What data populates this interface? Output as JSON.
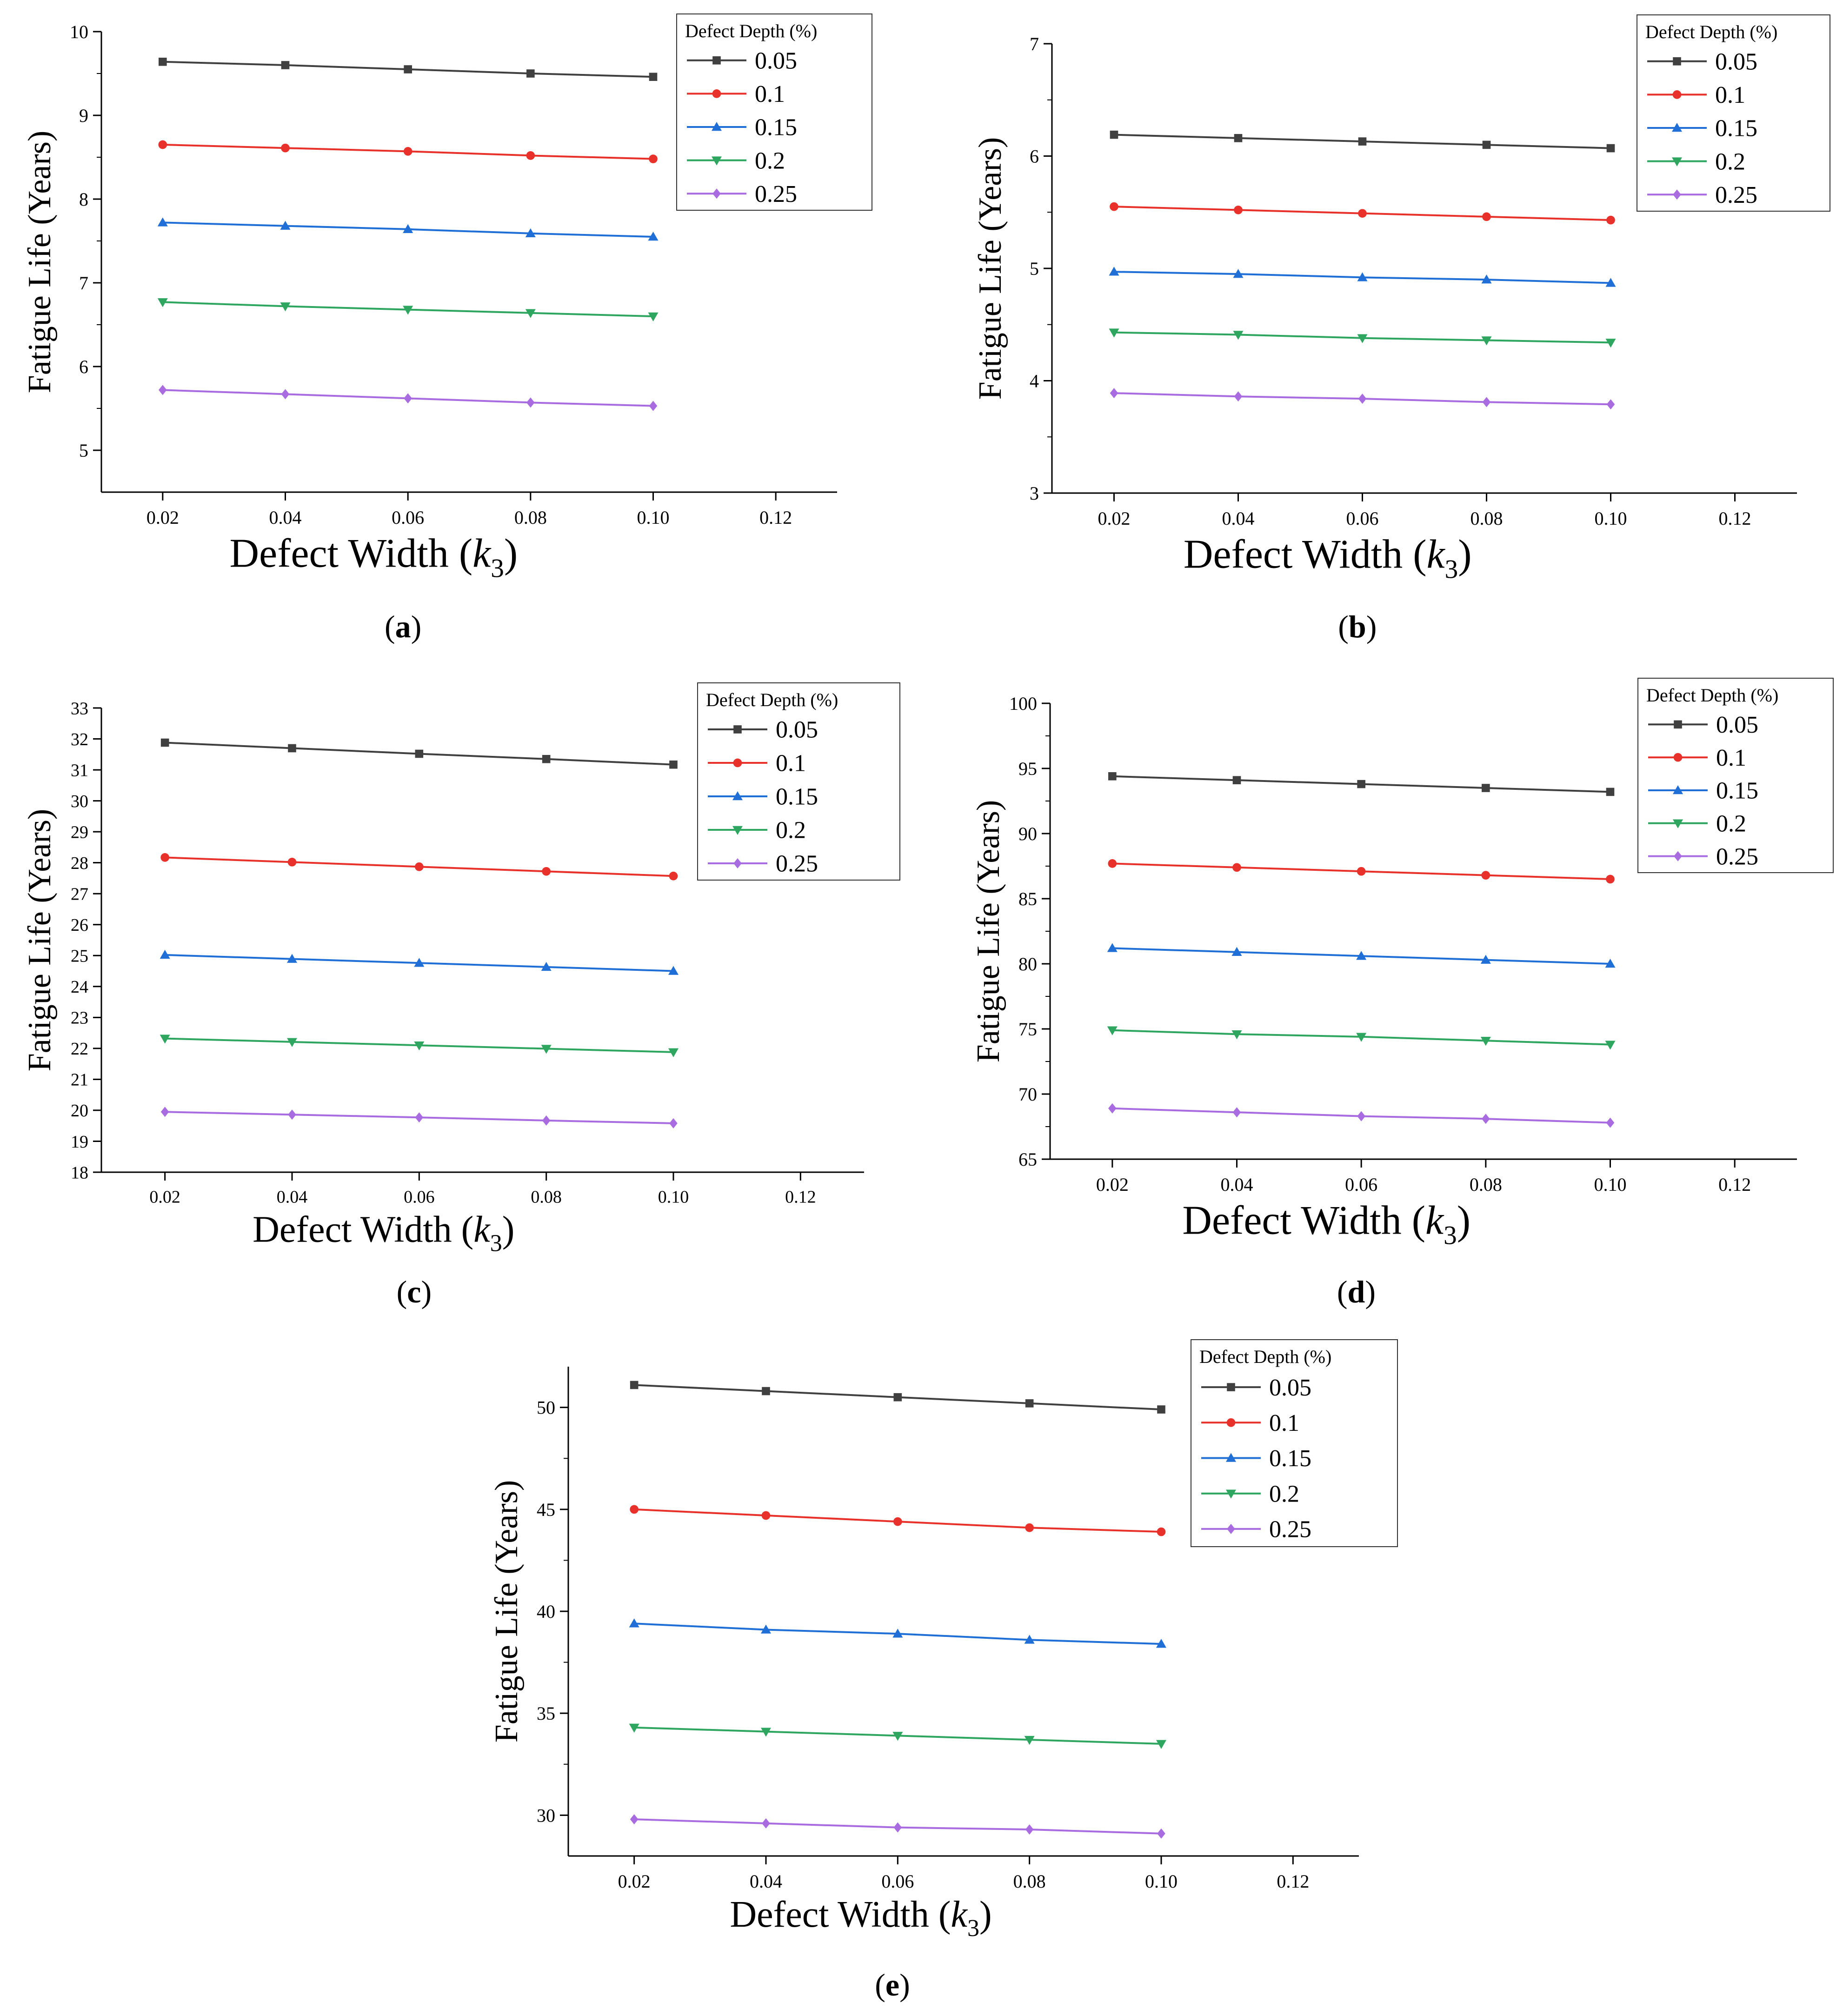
{
  "series_styles": [
    {
      "color": "#404040",
      "marker": "square"
    },
    {
      "color": "#e8312a",
      "marker": "circle"
    },
    {
      "color": "#1f6fd6",
      "marker": "triangle-up"
    },
    {
      "color": "#2ea660",
      "marker": "triangle-down"
    },
    {
      "color": "#a86ce0",
      "marker": "diamond"
    }
  ],
  "chart_data": [
    {
      "type": "line",
      "panel_label": "(a)",
      "panel_letter": "a",
      "xlabel": "Defect Width",
      "xlabel_var": "k",
      "xlabel_sub": "3",
      "ylabel": "Fatigue Life (Years)",
      "legend_title": "Defect Depth (%)",
      "xlim": [
        0.01,
        0.13
      ],
      "xticks": [
        "0.02",
        "0.04",
        "0.06",
        "0.08",
        "0.10",
        "0.12"
      ],
      "ylim": [
        4.5,
        10
      ],
      "yticks": [
        "5",
        "6",
        "7",
        "8",
        "9",
        "10"
      ],
      "x": [
        0.02,
        0.04,
        0.06,
        0.08,
        0.1
      ],
      "series": [
        {
          "name": "0.05",
          "values": [
            9.64,
            9.6,
            9.55,
            9.5,
            9.46
          ]
        },
        {
          "name": "0.1",
          "values": [
            8.65,
            8.61,
            8.57,
            8.52,
            8.48
          ]
        },
        {
          "name": "0.15",
          "values": [
            7.72,
            7.68,
            7.64,
            7.59,
            7.55
          ]
        },
        {
          "name": "0.2",
          "values": [
            6.77,
            6.72,
            6.68,
            6.64,
            6.6
          ]
        },
        {
          "name": "0.25",
          "values": [
            5.72,
            5.67,
            5.62,
            5.57,
            5.53
          ]
        }
      ]
    },
    {
      "type": "line",
      "panel_label": "(b)",
      "panel_letter": "b",
      "xlabel": "Defect Width",
      "xlabel_var": "k",
      "xlabel_sub": "3",
      "ylabel": "Fatigue Life (Years)",
      "legend_title": "Defect Depth (%)",
      "xlim": [
        0.01,
        0.13
      ],
      "xticks": [
        "0.02",
        "0.04",
        "0.06",
        "0.08",
        "0.10",
        "0.12"
      ],
      "ylim": [
        3,
        7
      ],
      "yticks": [
        "3",
        "4",
        "5",
        "6",
        "7"
      ],
      "x": [
        0.02,
        0.04,
        0.06,
        0.08,
        0.1
      ],
      "series": [
        {
          "name": "0.05",
          "values": [
            6.19,
            6.16,
            6.13,
            6.1,
            6.07
          ]
        },
        {
          "name": "0.1",
          "values": [
            5.55,
            5.52,
            5.49,
            5.46,
            5.43
          ]
        },
        {
          "name": "0.15",
          "values": [
            4.97,
            4.95,
            4.92,
            4.9,
            4.87
          ]
        },
        {
          "name": "0.2",
          "values": [
            4.43,
            4.41,
            4.38,
            4.36,
            4.34
          ]
        },
        {
          "name": "0.25",
          "values": [
            3.89,
            3.86,
            3.84,
            3.81,
            3.79
          ]
        }
      ]
    },
    {
      "type": "line",
      "panel_label": "(c)",
      "panel_letter": "c",
      "xlabel": "Defect Width",
      "xlabel_var": "k",
      "xlabel_sub": "3",
      "ylabel": "Fatigue Life (Years)",
      "legend_title": "Defect Depth (%)",
      "xlim": [
        0.01,
        0.13
      ],
      "xticks": [
        "0.02",
        "0.04",
        "0.06",
        "0.08",
        "0.10",
        "0.12"
      ],
      "ylim": [
        18,
        33
      ],
      "yticks": [
        "18",
        "19",
        "20",
        "21",
        "22",
        "23",
        "24",
        "25",
        "26",
        "27",
        "28",
        "29",
        "30",
        "31",
        "32",
        "33"
      ],
      "x": [
        0.02,
        0.04,
        0.06,
        0.08,
        0.1
      ],
      "series": [
        {
          "name": "0.05",
          "values": [
            31.88,
            31.7,
            31.52,
            31.35,
            31.17
          ]
        },
        {
          "name": "0.1",
          "values": [
            28.17,
            28.02,
            27.87,
            27.72,
            27.57
          ]
        },
        {
          "name": "0.15",
          "values": [
            25.02,
            24.89,
            24.76,
            24.63,
            24.5
          ]
        },
        {
          "name": "0.2",
          "values": [
            22.32,
            22.21,
            22.1,
            21.99,
            21.88
          ]
        },
        {
          "name": "0.25",
          "values": [
            19.95,
            19.86,
            19.77,
            19.67,
            19.58
          ]
        }
      ]
    },
    {
      "type": "line",
      "panel_label": "(d)",
      "panel_letter": "d",
      "xlabel": "Defect Width",
      "xlabel_var": "k",
      "xlabel_sub": "3",
      "ylabel": "Fatigue Life (Years)",
      "legend_title": "Defect Depth (%)",
      "xlim": [
        0.01,
        0.13
      ],
      "xticks": [
        "0.02",
        "0.04",
        "0.06",
        "0.08",
        "0.10",
        "0.12"
      ],
      "ylim": [
        65,
        100
      ],
      "yticks": [
        "65",
        "70",
        "75",
        "80",
        "85",
        "90",
        "95",
        "100"
      ],
      "x": [
        0.02,
        0.04,
        0.06,
        0.08,
        0.1
      ],
      "series": [
        {
          "name": "0.05",
          "values": [
            94.4,
            94.1,
            93.8,
            93.5,
            93.2
          ]
        },
        {
          "name": "0.1",
          "values": [
            87.7,
            87.4,
            87.1,
            86.8,
            86.5
          ]
        },
        {
          "name": "0.15",
          "values": [
            81.2,
            80.9,
            80.6,
            80.3,
            80.0
          ]
        },
        {
          "name": "0.2",
          "values": [
            74.9,
            74.6,
            74.4,
            74.1,
            73.8
          ]
        },
        {
          "name": "0.25",
          "values": [
            68.9,
            68.6,
            68.3,
            68.1,
            67.8
          ]
        }
      ]
    },
    {
      "type": "line",
      "panel_label": "(e)",
      "panel_letter": "e",
      "xlabel": "Defect Width",
      "xlabel_var": "k",
      "xlabel_sub": "3",
      "ylabel": "Fatigue Life (Years)",
      "legend_title": "Defect Depth (%)",
      "xlim": [
        0.01,
        0.13
      ],
      "xticks": [
        "0.02",
        "0.04",
        "0.06",
        "0.08",
        "0.10",
        "0.12"
      ],
      "ylim": [
        28,
        52
      ],
      "yticks": [
        "30",
        "35",
        "40",
        "45",
        "50"
      ],
      "x": [
        0.02,
        0.04,
        0.06,
        0.08,
        0.1
      ],
      "series": [
        {
          "name": "0.05",
          "values": [
            51.1,
            50.8,
            50.5,
            50.2,
            49.9
          ]
        },
        {
          "name": "0.1",
          "values": [
            45.0,
            44.7,
            44.4,
            44.1,
            43.9
          ]
        },
        {
          "name": "0.15",
          "values": [
            39.4,
            39.1,
            38.9,
            38.6,
            38.4
          ]
        },
        {
          "name": "0.2",
          "values": [
            34.3,
            34.1,
            33.9,
            33.7,
            33.5
          ]
        },
        {
          "name": "0.25",
          "values": [
            29.8,
            29.6,
            29.4,
            29.3,
            29.1
          ]
        }
      ]
    }
  ]
}
